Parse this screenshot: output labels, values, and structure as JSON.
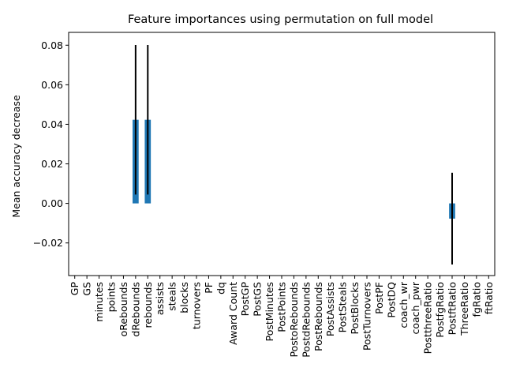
{
  "chart_data": {
    "type": "bar",
    "title": "Feature importances using permutation on full model",
    "xlabel": "",
    "ylabel": "Mean accuracy decrease",
    "ylim": [
      -0.0365,
      0.0865
    ],
    "yticks": [
      -0.02,
      0.0,
      0.02,
      0.04,
      0.06,
      0.08
    ],
    "ytick_labels": [
      "−0.02",
      "0.00",
      "0.02",
      "0.04",
      "0.06",
      "0.08"
    ],
    "grid": false,
    "bar_color": "#1f77b4",
    "error_color": "#000000",
    "categories": [
      "GP",
      "GS",
      "minutes",
      "points",
      "oRebounds",
      "dRebounds",
      "rebounds",
      "assists",
      "steals",
      "blocks",
      "turnovers",
      "PF",
      "dq",
      "Award Count",
      "PostGP",
      "PostGS",
      "PostMinutes",
      "PostPoints",
      "PostoRebounds",
      "PostdRebounds",
      "PostRebounds",
      "PostAssists",
      "PostSteals",
      "PostBlocks",
      "PostTurnovers",
      "PostPF",
      "PostDQ",
      "coach_wr",
      "coach_pwr",
      "PostthreeRatio",
      "PostfgRatio",
      "PostftRatio",
      "ThreeRatio",
      "fgRatio",
      "ftRatio"
    ],
    "values": [
      0,
      0,
      0,
      0,
      0,
      0.0423,
      0.0423,
      0,
      0,
      0,
      0,
      0,
      0,
      0,
      0,
      0,
      0,
      0,
      0,
      0,
      0,
      0,
      0,
      0,
      0,
      0,
      0,
      0,
      0,
      0,
      0,
      -0.0077,
      0,
      0,
      0
    ],
    "errors": [
      0,
      0,
      0,
      0,
      0,
      0.0378,
      0.0378,
      0,
      0,
      0,
      0,
      0,
      0,
      0,
      0,
      0,
      0,
      0,
      0,
      0,
      0,
      0,
      0,
      0,
      0,
      0,
      0,
      0,
      0,
      0,
      0,
      0.0232,
      0,
      0,
      0
    ]
  }
}
